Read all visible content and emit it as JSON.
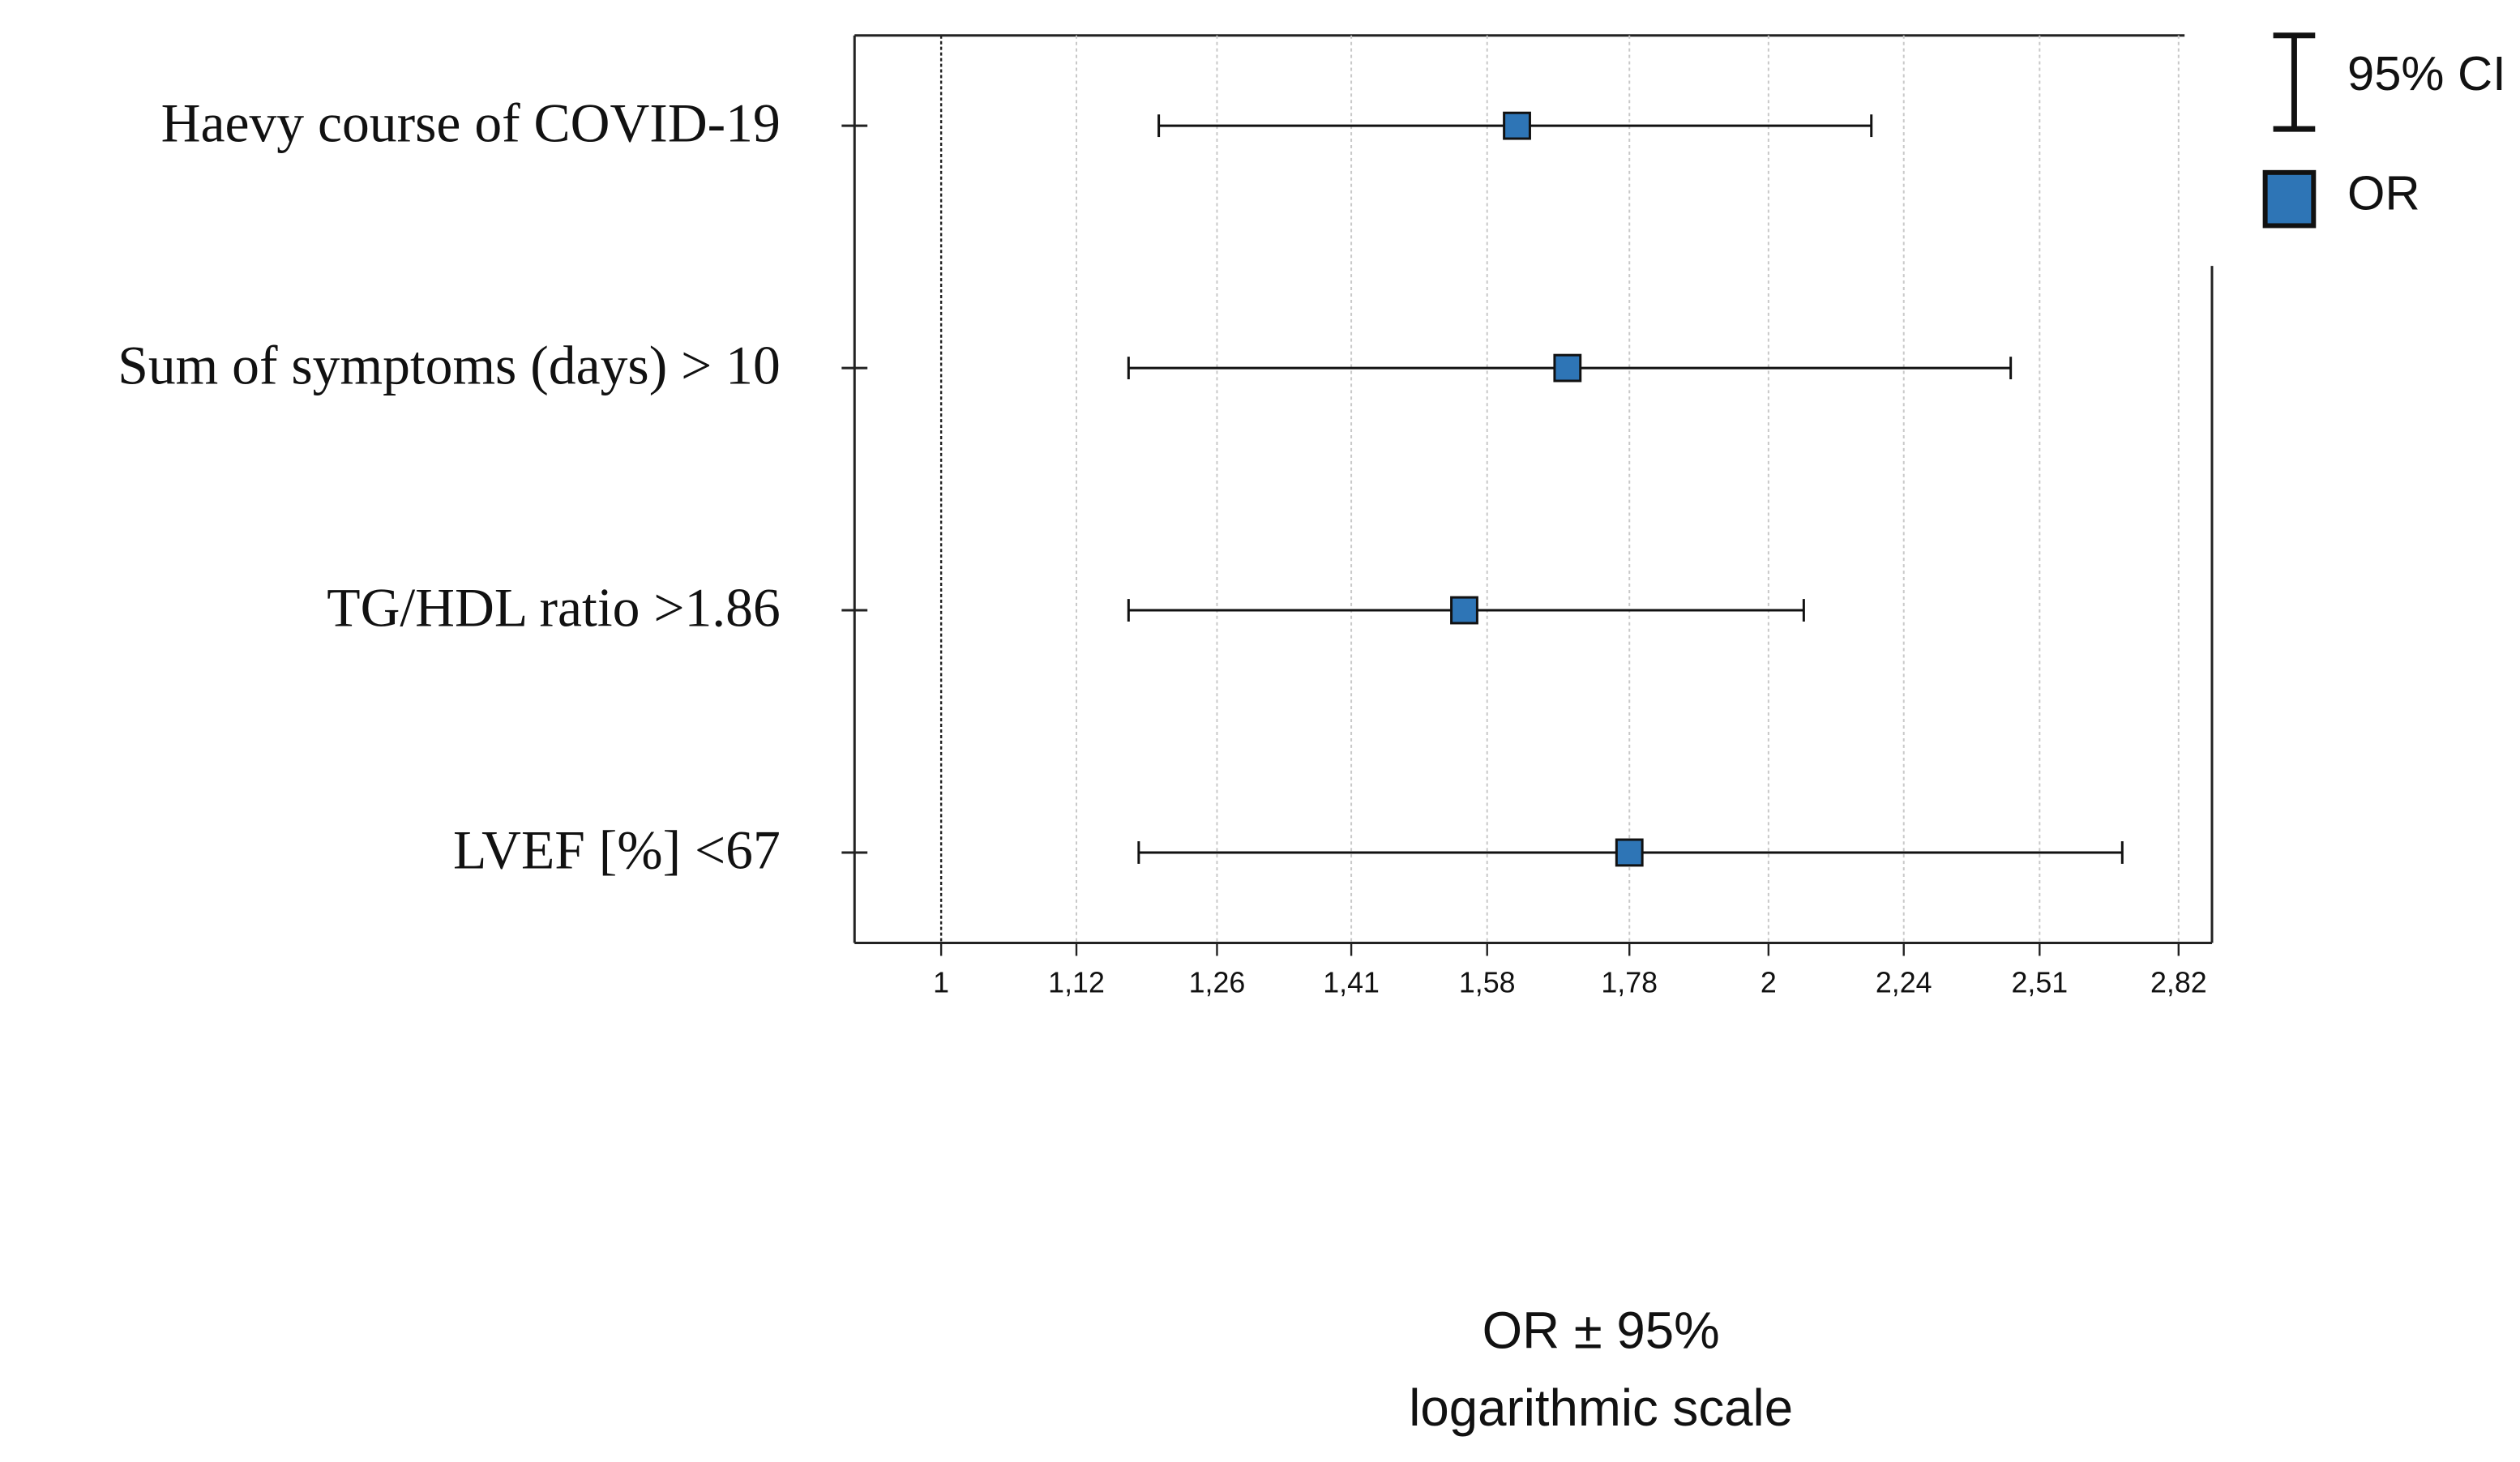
{
  "chart_data": {
    "type": "forest",
    "categories": [
      "Haevy course of COVID-19",
      "Sum of symptoms (days) > 10",
      "TG/HDL ratio >1.86",
      "LVEF [%] <67"
    ],
    "series": [
      {
        "name": "OR",
        "color": "#2e75b6",
        "values": [
          1.62,
          1.69,
          1.55,
          1.78
        ]
      }
    ],
    "ci_name": "95% CI",
    "ci_lower": [
      1.2,
      1.17,
      1.17,
      1.18
    ],
    "ci_upper": [
      2.18,
      2.45,
      2.06,
      2.69
    ],
    "xscale": "log",
    "xlim": [
      0.93,
      2.9
    ],
    "xticks": [
      1,
      {
        "value": 1.12,
        "label": "1,12"
      },
      {
        "value": 1.26,
        "label": "1,26"
      },
      {
        "value": 1.41,
        "label": "1,41"
      },
      {
        "value": 1.58,
        "label": "1,58"
      },
      {
        "value": 1.78,
        "label": "1,78"
      },
      2,
      {
        "value": 2.24,
        "label": "2,24"
      },
      {
        "value": 2.51,
        "label": "2,51"
      },
      {
        "value": 2.82,
        "label": "2,82"
      }
    ],
    "reference_line": 1,
    "grid": true,
    "xlabel": [
      "OR ± 95%",
      "logarithmic scale"
    ]
  }
}
